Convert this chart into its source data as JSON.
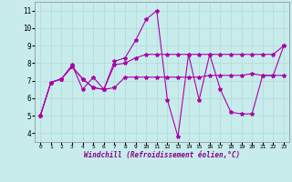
{
  "xlabel": "Windchill (Refroidissement éolien,°C)",
  "ylabel": "",
  "background_color": "#c8ecec",
  "grid_color": "#b0d8d8",
  "line_color": "#aa00aa",
  "xlim": [
    -0.5,
    23.5
  ],
  "ylim": [
    3.5,
    11.5
  ],
  "xticks": [
    0,
    1,
    2,
    3,
    4,
    5,
    6,
    7,
    8,
    9,
    10,
    11,
    12,
    13,
    14,
    15,
    16,
    17,
    18,
    19,
    20,
    21,
    22,
    23
  ],
  "yticks": [
    4,
    5,
    6,
    7,
    8,
    9,
    10,
    11
  ],
  "series": [
    [
      5.0,
      6.9,
      7.1,
      7.9,
      6.5,
      7.2,
      6.5,
      8.1,
      8.3,
      9.3,
      10.5,
      11.0,
      5.9,
      3.8,
      8.5,
      5.9,
      8.5,
      6.5,
      5.2,
      5.1,
      5.1,
      7.3,
      7.3,
      9.0
    ],
    [
      5.0,
      6.9,
      7.1,
      7.8,
      7.1,
      6.6,
      6.5,
      6.6,
      7.2,
      7.2,
      7.2,
      7.2,
      7.2,
      7.2,
      7.2,
      7.2,
      7.3,
      7.3,
      7.3,
      7.3,
      7.4,
      7.3,
      7.3,
      7.3
    ],
    [
      5.0,
      6.9,
      7.1,
      7.8,
      7.1,
      6.6,
      6.5,
      7.9,
      8.0,
      8.3,
      8.5,
      8.5,
      8.5,
      8.5,
      8.5,
      8.5,
      8.5,
      8.5,
      8.5,
      8.5,
      8.5,
      8.5,
      8.5,
      9.0
    ]
  ]
}
